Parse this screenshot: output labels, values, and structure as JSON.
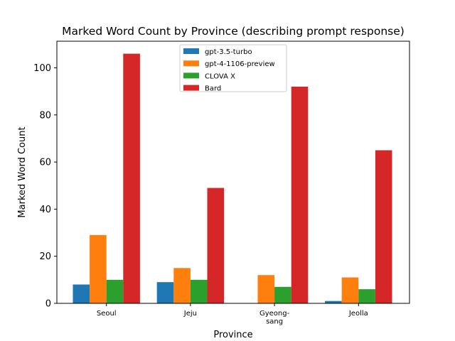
{
  "chart_data": {
    "type": "bar",
    "title": "Marked Word Count by Province (describing prompt response)",
    "xlabel": "Province",
    "ylabel": "Marked Word Count",
    "categories": [
      [
        "Seoul"
      ],
      [
        "Jeju"
      ],
      [
        "Gyeong-",
        "sang"
      ],
      [
        "Jeolla"
      ]
    ],
    "series": [
      {
        "name": "gpt-3.5-turbo",
        "color": "#1f77b4",
        "values": [
          8,
          9,
          0,
          1
        ]
      },
      {
        "name": "gpt-4-1106-preview",
        "color": "#ff7f0e",
        "values": [
          29,
          15,
          12,
          11
        ]
      },
      {
        "name": "CLOVA X",
        "color": "#2ca02c",
        "values": [
          10,
          10,
          7,
          6
        ]
      },
      {
        "name": "Bard",
        "color": "#d62728",
        "values": [
          106,
          49,
          92,
          65
        ]
      }
    ],
    "ylim": [
      0,
      111.3
    ],
    "yticks": [
      0,
      20,
      40,
      60,
      80,
      100
    ],
    "grid": false,
    "legend_position": "upper center"
  }
}
